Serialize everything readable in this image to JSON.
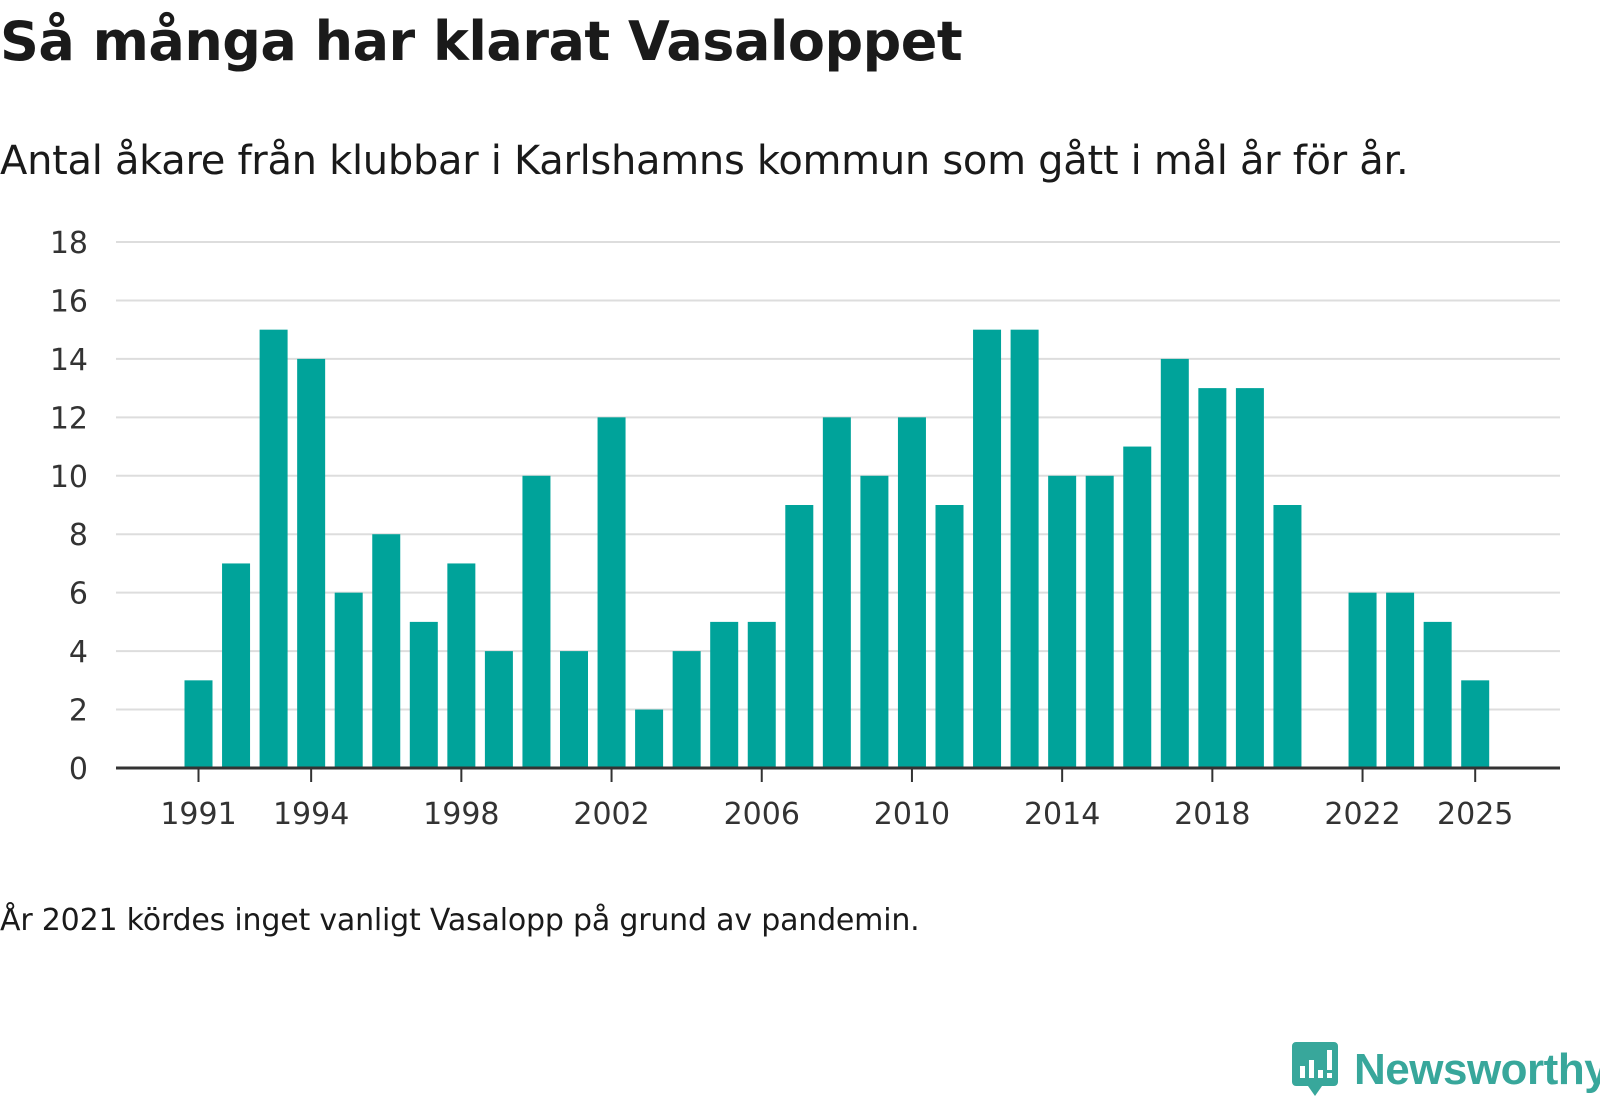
{
  "title": "Så många har klarat Vasaloppet",
  "subtitle": "Antal åkare från klubbar i Karlshamns kommun som gått i mål år för år.",
  "note": "År 2021 kördes inget vanligt Vasalopp på grund av pandemin.",
  "brand": {
    "name": "Newsworthy",
    "color": "#38a79b"
  },
  "colors": {
    "bar": "#00a39a",
    "grid": "#dddddd",
    "axis": "#333333"
  },
  "chart_data": {
    "type": "bar",
    "title": "Så många har klarat Vasaloppet",
    "xlabel": "",
    "ylabel": "",
    "ylim": [
      0,
      18
    ],
    "yticks": [
      0,
      2,
      4,
      6,
      8,
      10,
      12,
      14,
      16,
      18
    ],
    "xticks": [
      "1991",
      "1994",
      "1998",
      "2002",
      "2006",
      "2010",
      "2014",
      "2018",
      "2022",
      "2025"
    ],
    "grid": true,
    "categories": [
      "1991",
      "1992",
      "1993",
      "1994",
      "1995",
      "1996",
      "1997",
      "1998",
      "1999",
      "2000",
      "2001",
      "2002",
      "2003",
      "2004",
      "2005",
      "2006",
      "2007",
      "2008",
      "2009",
      "2010",
      "2011",
      "2012",
      "2013",
      "2014",
      "2015",
      "2016",
      "2017",
      "2018",
      "2019",
      "2020",
      "2021",
      "2022",
      "2023",
      "2024",
      "2025"
    ],
    "values": [
      3,
      7,
      15,
      14,
      6,
      8,
      5,
      7,
      4,
      10,
      4,
      12,
      2,
      4,
      5,
      5,
      9,
      12,
      10,
      12,
      9,
      15,
      15,
      10,
      10,
      11,
      14,
      13,
      13,
      9,
      null,
      6,
      6,
      5,
      3
    ]
  }
}
